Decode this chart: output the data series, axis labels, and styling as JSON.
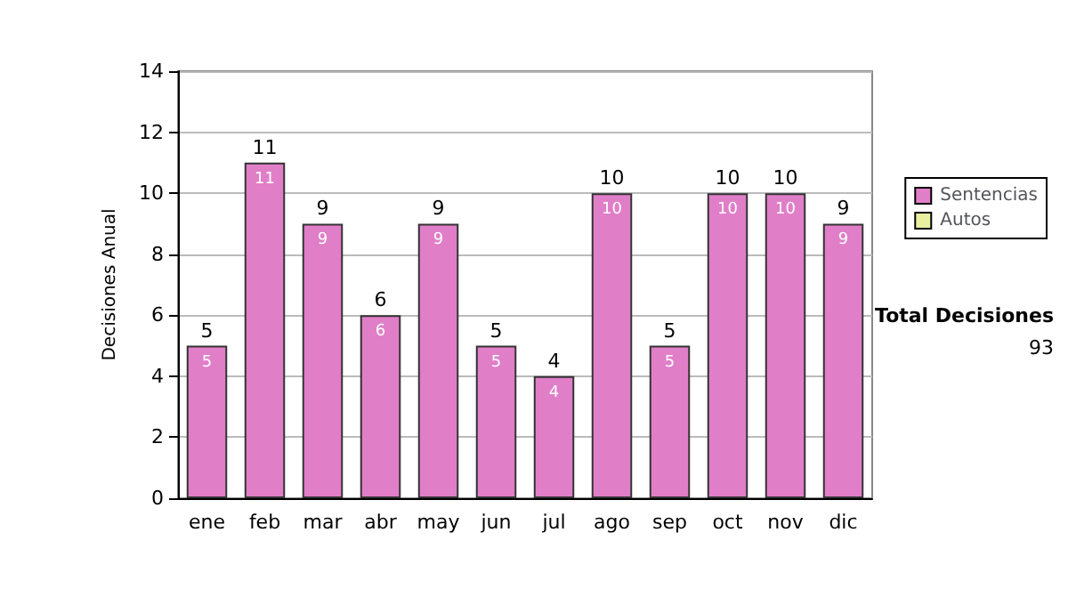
{
  "chart_data": {
    "type": "bar",
    "ylabel": "Decisiones Anual",
    "categories": [
      "ene",
      "feb",
      "mar",
      "abr",
      "may",
      "jun",
      "jul",
      "ago",
      "sep",
      "oct",
      "nov",
      "dic"
    ],
    "series": [
      {
        "name": "Sentencias",
        "color": "#e07ec8",
        "values": [
          5,
          11,
          9,
          6,
          9,
          5,
          4,
          10,
          5,
          10,
          10,
          9
        ],
        "value_labels": [
          "5",
          "11",
          "9",
          "6",
          "9",
          "5",
          "4",
          "10",
          "5",
          "10",
          "10",
          "9"
        ]
      },
      {
        "name": "Autos",
        "color": "#e8f0a0",
        "values": [
          null,
          null,
          null,
          null,
          null,
          null,
          null,
          null,
          null,
          null,
          null,
          null
        ]
      }
    ],
    "stacked": true,
    "totals": [
      "5",
      "11",
      "9",
      "6",
      "9",
      "5",
      "4",
      "10",
      "5",
      "10",
      "10",
      "9"
    ],
    "ylim": [
      0,
      14
    ],
    "yticks": [
      0,
      2,
      4,
      6,
      8,
      10,
      12,
      14
    ],
    "grid": "y",
    "legend": "right",
    "annotations": [
      "Total Decisiones",
      "93"
    ]
  }
}
